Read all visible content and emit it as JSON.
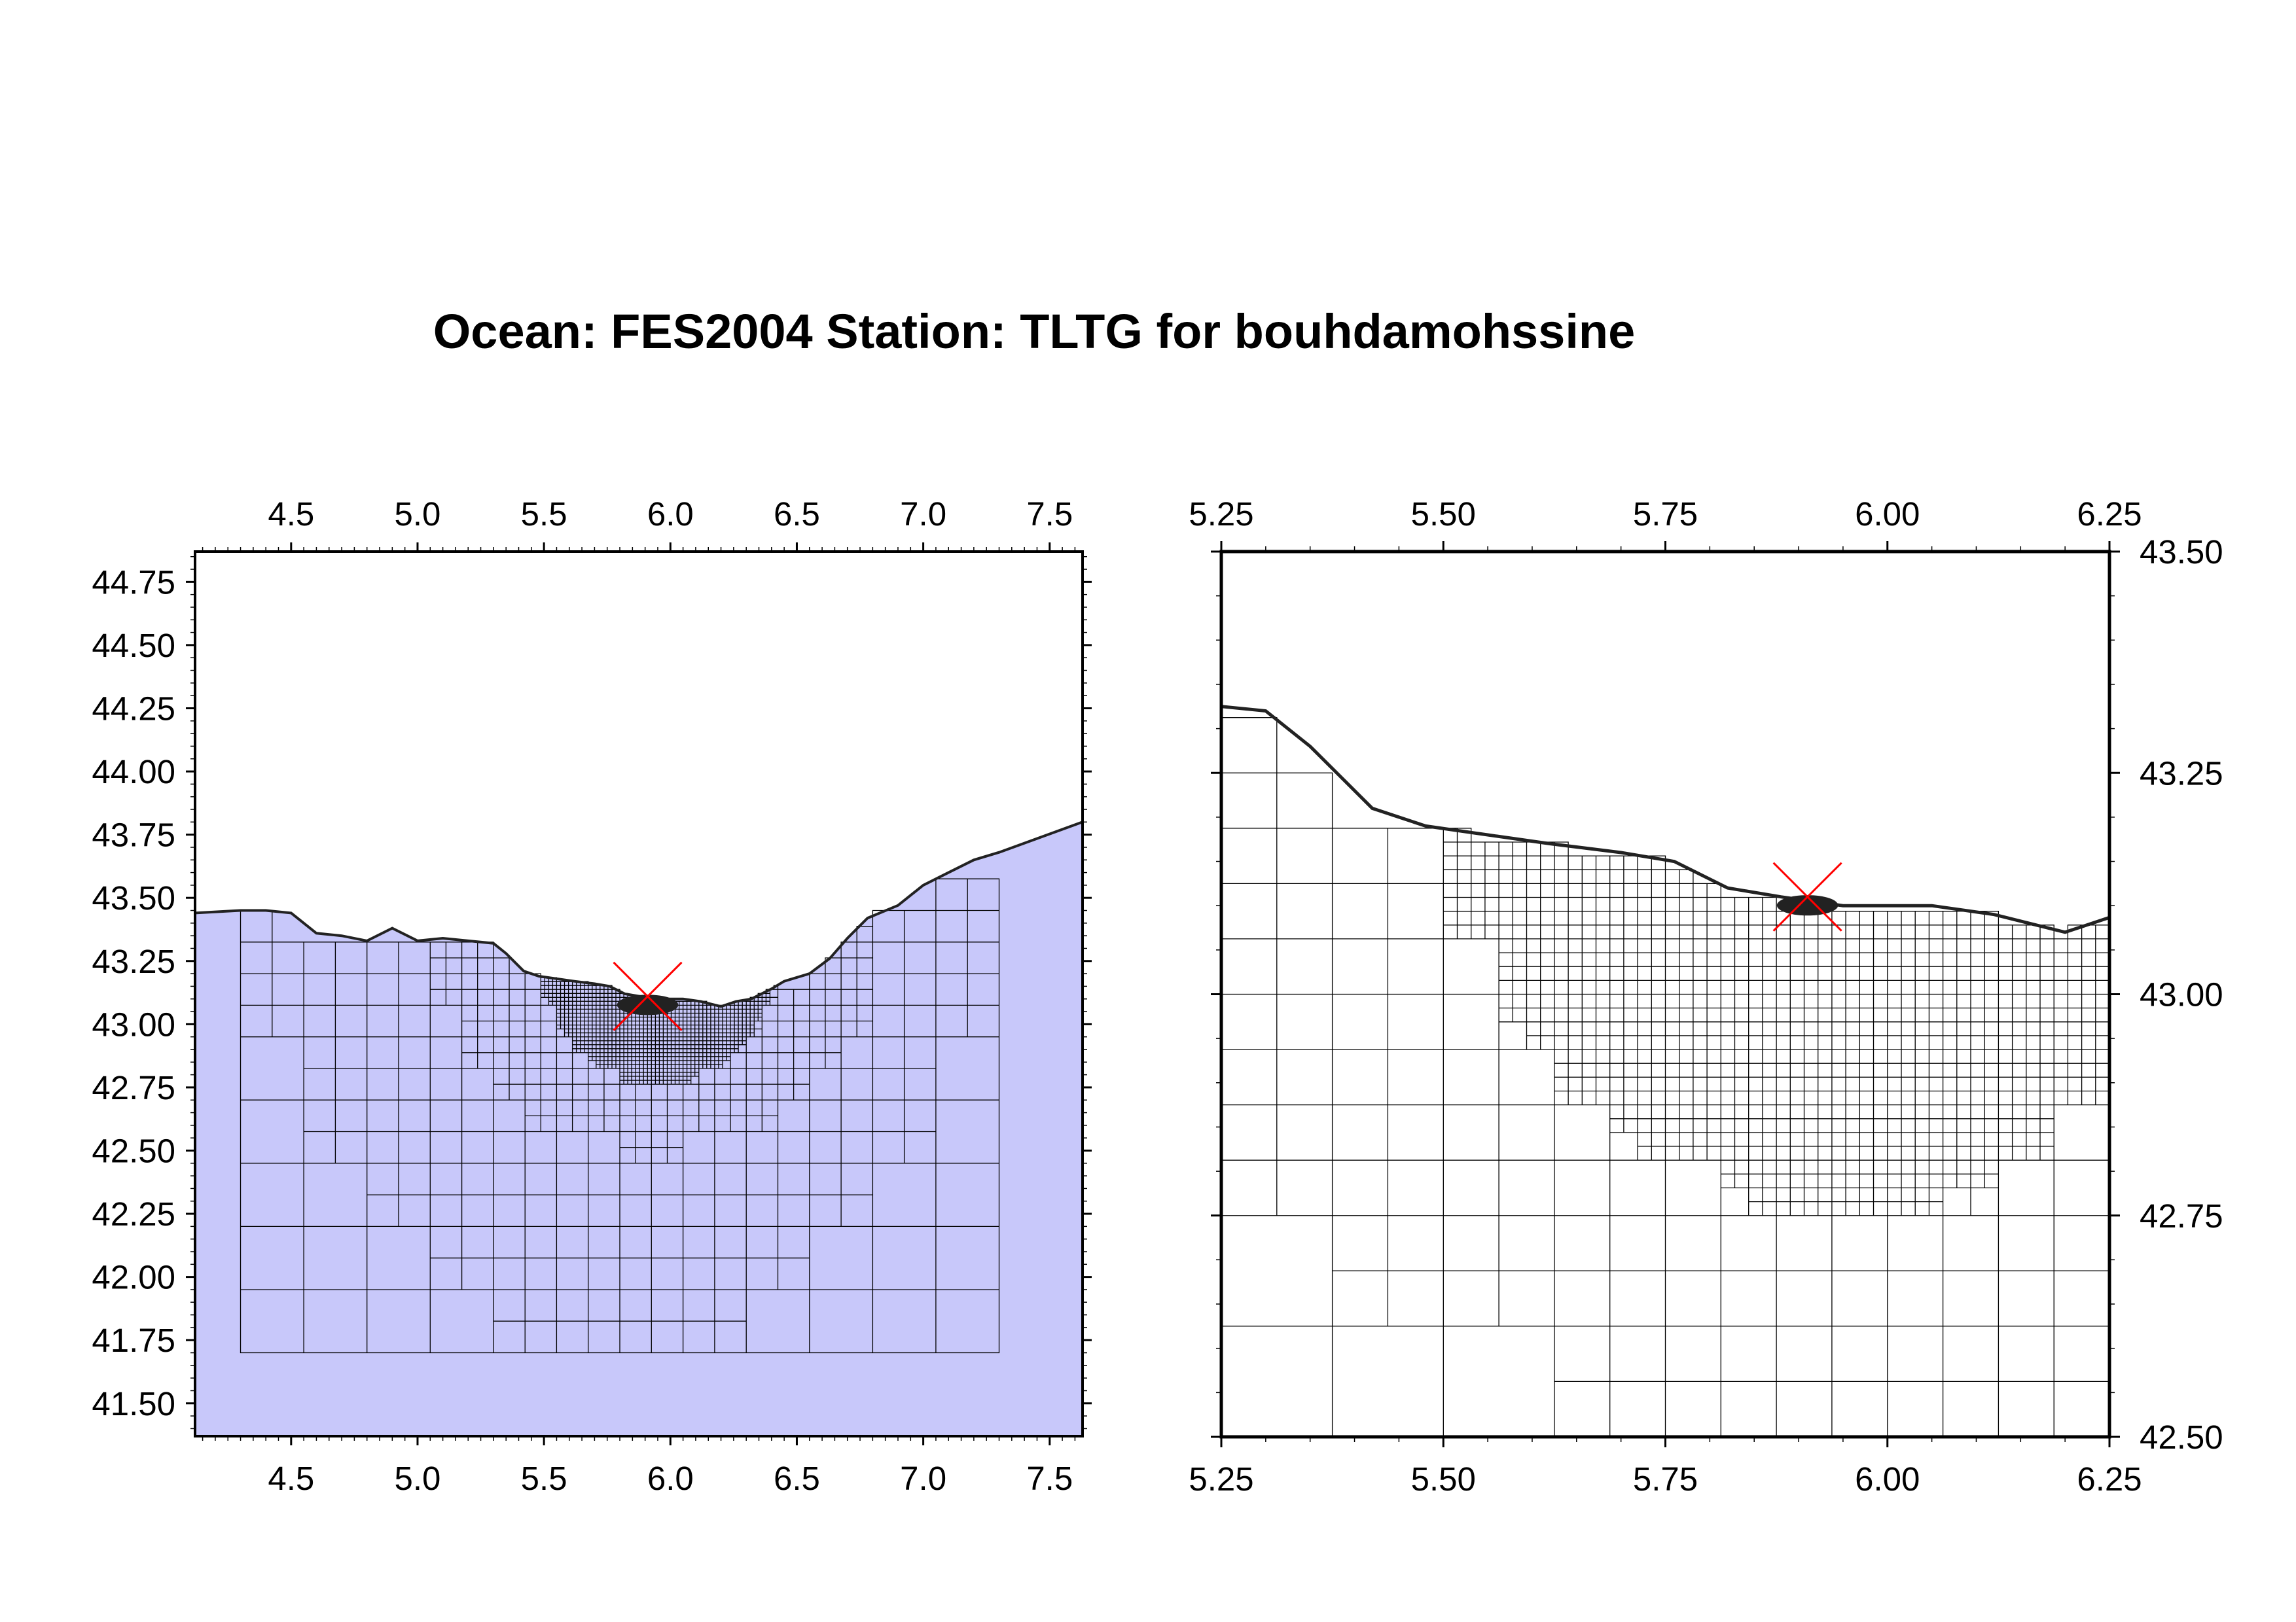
{
  "title": "Ocean: FES2004  Station: TLTG  for bouhdamohssine",
  "colors": {
    "ocean_fill": "#c8c8fa",
    "grid_line": "#000000",
    "frame": "#000000",
    "land_detail": "#222222",
    "station_marker": "#ff0000"
  },
  "left_map": {
    "lon_range": [
      4.12,
      7.63
    ],
    "lat_range": [
      41.37,
      44.87
    ],
    "x_ticks": [
      "4.5",
      "5.0",
      "5.5",
      "6.0",
      "6.5",
      "7.0",
      "7.5"
    ],
    "y_ticks": [
      "41.50",
      "41.75",
      "42.00",
      "42.25",
      "42.50",
      "42.75",
      "43.00",
      "43.25",
      "43.50",
      "43.75",
      "44.00",
      "44.25",
      "44.50",
      "44.75"
    ],
    "ocean_background": true
  },
  "right_map": {
    "lon_range": [
      5.25,
      6.25
    ],
    "lat_range": [
      42.5,
      43.5
    ],
    "x_ticks": [
      "5.25",
      "5.50",
      "5.75",
      "6.00",
      "6.25"
    ],
    "y_ticks": [
      "42.50",
      "42.75",
      "43.00",
      "43.25",
      "43.50"
    ],
    "ocean_background": false
  },
  "station": {
    "name": "TLTG",
    "lon": 5.91,
    "lat": 43.11
  },
  "mesh_resolution_zones": [
    {
      "lat_min": 42.85,
      "lat_max": 43.35,
      "lon_min": 5.65,
      "lon_max": 6.25,
      "cell_deg": 0.015
    },
    {
      "lat_min": 42.75,
      "lat_max": 43.4,
      "lon_min": 5.45,
      "lon_max": 6.45,
      "cell_deg": 0.03
    },
    {
      "lat_min": 42.5,
      "lat_max": 43.45,
      "lon_min": 5.05,
      "lon_max": 6.85,
      "cell_deg": 0.0625
    },
    {
      "lat_min": 41.7,
      "lat_max": 43.7,
      "lon_min": 4.3,
      "lon_max": 7.3,
      "cell_deg": 0.125
    }
  ],
  "coastline": [
    [
      4.12,
      43.44
    ],
    [
      4.3,
      43.45
    ],
    [
      4.4,
      43.45
    ],
    [
      4.5,
      43.44
    ],
    [
      4.6,
      43.36
    ],
    [
      4.7,
      43.35
    ],
    [
      4.8,
      43.33
    ],
    [
      4.9,
      43.38
    ],
    [
      5.0,
      43.33
    ],
    [
      5.1,
      43.34
    ],
    [
      5.2,
      43.33
    ],
    [
      5.3,
      43.32
    ],
    [
      5.35,
      43.28
    ],
    [
      5.42,
      43.21
    ],
    [
      5.48,
      43.19
    ],
    [
      5.55,
      43.18
    ],
    [
      5.62,
      43.17
    ],
    [
      5.7,
      43.16
    ],
    [
      5.76,
      43.15
    ],
    [
      5.82,
      43.12
    ],
    [
      5.88,
      43.11
    ],
    [
      5.95,
      43.1
    ],
    [
      6.05,
      43.1
    ],
    [
      6.12,
      43.09
    ],
    [
      6.2,
      43.07
    ],
    [
      6.26,
      43.09
    ],
    [
      6.32,
      43.1
    ],
    [
      6.4,
      43.14
    ],
    [
      6.45,
      43.17
    ],
    [
      6.55,
      43.2
    ],
    [
      6.63,
      43.26
    ],
    [
      6.7,
      43.34
    ],
    [
      6.78,
      43.42
    ],
    [
      6.9,
      43.47
    ],
    [
      7.0,
      43.55
    ],
    [
      7.1,
      43.6
    ],
    [
      7.2,
      43.65
    ],
    [
      7.3,
      43.68
    ],
    [
      7.63,
      43.8
    ]
  ]
}
